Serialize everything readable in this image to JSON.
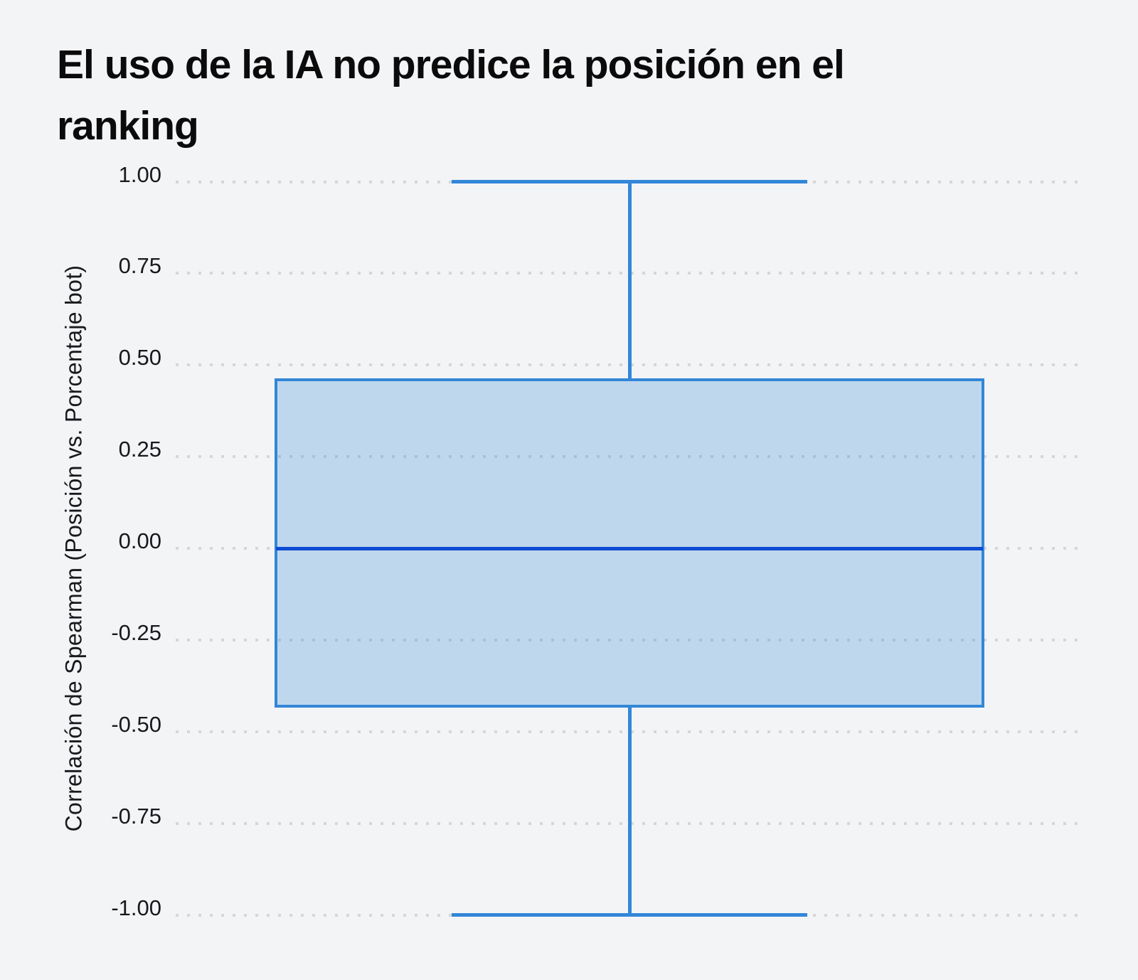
{
  "page": {
    "background": "#f3f4f6"
  },
  "header": {
    "title_lines": [
      "El uso de la IA no predice la posición en el",
      "ranking"
    ]
  },
  "chart_data": {
    "type": "box",
    "title": "El uso de la IA no predice la posición en el ranking",
    "xlabel": "",
    "ylabel": "Correlación de Spearman (Posición vs. Porcentaje bot)",
    "ylim": [
      -1.0,
      1.0
    ],
    "ytick_step": 0.25,
    "yticks": [
      "1.00",
      "0.75",
      "0.50",
      "0.25",
      "0.00",
      "-0.25",
      "-0.50",
      "-0.75",
      "-1.00"
    ],
    "grid": "horizontal-dotted",
    "legend": "none",
    "categories": [
      ""
    ],
    "series": [
      {
        "name": "Correlación de Spearman (Posición vs. Porcentaje bot)",
        "whisker_low": -1.0,
        "q1": -0.43,
        "median": 0.0,
        "q3": 0.46,
        "whisker_high": 1.0,
        "outliers": []
      }
    ],
    "colors": {
      "box_fill": "rgba(51,135,216,0.27)",
      "box_border": "#3287d8",
      "median": "#0c4bd3",
      "grid_dot": "#d4d6d9",
      "tick_text": "#17191c",
      "title_text": "#0b0b0c",
      "background": "#f3f4f6"
    }
  }
}
